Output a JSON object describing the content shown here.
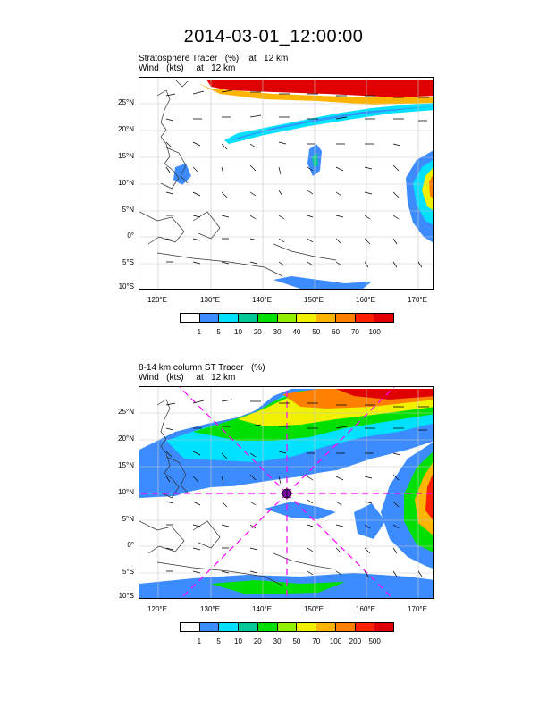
{
  "title": "2014-03-01_12:00:00",
  "panels": [
    {
      "line1": "Stratosphere Tracer   (%)    at   12 km",
      "line2": "Wind   (kts)     at   12 km",
      "lat_labels": [
        "25°N",
        "20°N",
        "15°N",
        "10°N",
        "5°N",
        "0°",
        "5°S",
        "10°S"
      ],
      "lon_labels": [
        "120°E",
        "130°E",
        "140°E",
        "150°E",
        "160°E",
        "170°E"
      ],
      "colorbar_labels": [
        "1",
        "5",
        "10",
        "20",
        "30",
        "40",
        "50",
        "60",
        "70",
        "100"
      ],
      "colorbar_colors": [
        "#ffffff",
        "#3c8cff",
        "#00e0ff",
        "#00c896",
        "#00e000",
        "#90f000",
        "#f0f000",
        "#ffb400",
        "#ff8000",
        "#ff2000",
        "#e00000"
      ]
    },
    {
      "line1": "8-14 km column ST Tracer   (%)",
      "line2": "Wind   (kts)     at   12 km",
      "lat_labels": [
        "25°N",
        "20°N",
        "15°N",
        "10°N",
        "5°N",
        "0°",
        "5°S",
        "10°S"
      ],
      "lon_labels": [
        "120°E",
        "130°E",
        "140°E",
        "150°E",
        "160°E",
        "170°E"
      ],
      "colorbar_labels": [
        "1",
        "5",
        "10",
        "20",
        "30",
        "50",
        "70",
        "100",
        "200",
        "500"
      ],
      "colorbar_colors": [
        "#ffffff",
        "#3c8cff",
        "#00e0ff",
        "#00c896",
        "#00e000",
        "#90f000",
        "#f0f000",
        "#ffb400",
        "#ff8000",
        "#ff2000",
        "#e00000"
      ]
    }
  ],
  "storm_marker_color": "#ff00ff"
}
